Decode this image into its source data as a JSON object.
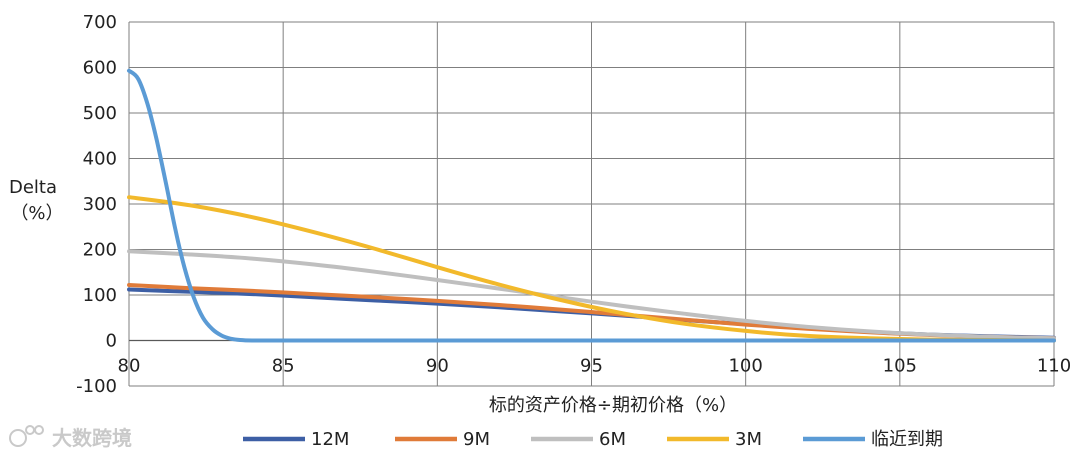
{
  "chart_data": {
    "type": "line",
    "ylabel_line1": "Delta",
    "ylabel_line2": "（%）",
    "xlabel": "标的资产价格÷期初价格（%）",
    "xlim": [
      80,
      110
    ],
    "ylim": [
      -100,
      700
    ],
    "x_ticks": [
      80,
      85,
      90,
      95,
      100,
      105,
      110
    ],
    "y_ticks": [
      -100,
      0,
      100,
      200,
      300,
      400,
      500,
      600,
      700
    ],
    "grid": true,
    "legend_position": "bottom",
    "series": [
      {
        "name": "12M",
        "color": "#3d5fa5",
        "x": [
          80,
          82,
          84,
          86,
          88,
          90,
          92,
          94,
          96,
          98,
          100,
          102,
          104,
          106,
          108,
          110
        ],
        "y": [
          112,
          107,
          102,
          95,
          88,
          81,
          73,
          64,
          55,
          45,
          36,
          27,
          19,
          13,
          9,
          6
        ]
      },
      {
        "name": "9M",
        "color": "#e07b39",
        "x": [
          80,
          82,
          84,
          86,
          88,
          90,
          92,
          94,
          96,
          98,
          100,
          102,
          104,
          106,
          108,
          110
        ],
        "y": [
          122,
          115,
          109,
          102,
          95,
          87,
          78,
          68,
          57,
          46,
          35,
          26,
          18,
          12,
          8,
          5
        ]
      },
      {
        "name": "6M",
        "color": "#bfbfbf",
        "x": [
          80,
          82,
          84,
          86,
          88,
          90,
          92,
          94,
          96,
          98,
          100,
          102,
          104,
          106,
          108,
          110
        ],
        "y": [
          196,
          189,
          180,
          167,
          151,
          133,
          114,
          95,
          76,
          59,
          43,
          30,
          20,
          13,
          8,
          5
        ]
      },
      {
        "name": "3M",
        "color": "#f2b92b",
        "x": [
          80,
          82,
          84,
          86,
          88,
          90,
          92,
          94,
          96,
          98,
          100,
          102,
          104,
          106,
          108,
          110
        ],
        "y": [
          315,
          297,
          271,
          238,
          201,
          161,
          123,
          89,
          60,
          37,
          21,
          10,
          5,
          2,
          1,
          0
        ]
      },
      {
        "name": "临近到期",
        "color": "#5b9bd5",
        "x": [
          80,
          80.3,
          80.6,
          80.9,
          81.2,
          81.5,
          81.8,
          82.1,
          82.4,
          82.7,
          83.0,
          83.3,
          83.6,
          84.0,
          85,
          90,
          95,
          100,
          105,
          110
        ],
        "y": [
          593,
          575,
          520,
          440,
          345,
          245,
          160,
          95,
          50,
          25,
          11,
          4,
          1,
          0,
          0,
          0,
          0,
          0,
          0,
          0
        ]
      }
    ]
  },
  "watermark": {
    "text": "大数跨境",
    "icon": "watermark-logo-icon"
  }
}
